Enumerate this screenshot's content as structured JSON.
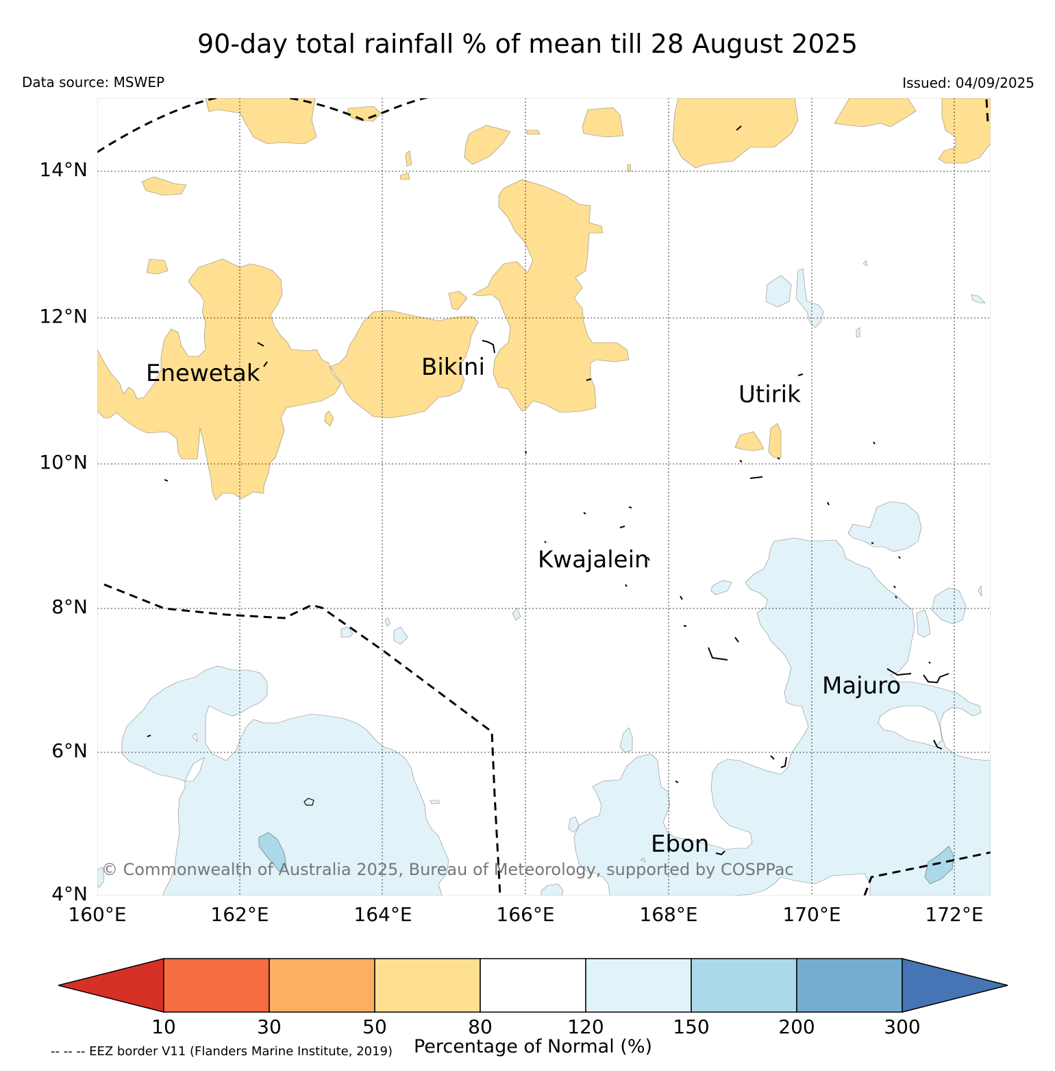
{
  "title": "90-day total rainfall % of mean till 28 August 2025",
  "data_source": "Data source: MSWEP",
  "issued": "Issued: 04/09/2025",
  "map": {
    "lat_labels": [
      "14°N",
      "12°N",
      "10°N",
      "8°N",
      "6°N",
      "4°N"
    ],
    "lon_labels": [
      "160°E",
      "162°E",
      "164°E",
      "166°E",
      "168°E",
      "170°E",
      "172°E"
    ],
    "places": [
      {
        "name": "Enewetak"
      },
      {
        "name": "Bikini"
      },
      {
        "name": "Utirik"
      },
      {
        "name": "Kwajalein"
      },
      {
        "name": "Majuro"
      },
      {
        "name": "Ebon"
      }
    ],
    "copyright": "© Commonwealth of Australia 2025, Bureau of Meteorology, supported by COSPPac",
    "dry_fill": "#ffdf91",
    "wet_fill": "#e1f3f8",
    "very_wet_fill": "#abd9e9"
  },
  "colorbar": {
    "label": "Percentage of Normal (%)",
    "ticks": [
      "10",
      "30",
      "50",
      "80",
      "120",
      "150",
      "200",
      "300"
    ],
    "colors": {
      "below_10": "#d73027",
      "10_30": "#f46d43",
      "30_50": "#fdae61",
      "50_80": "#fee090",
      "80_120": "#ffffff",
      "120_150": "#e0f3f8",
      "150_200": "#abd9e9",
      "200_300": "#74add1",
      "above_300": "#4575b4"
    }
  },
  "eez_note": "-- -- -- EEZ border V11 (Flanders Marine Institute, 2019)"
}
